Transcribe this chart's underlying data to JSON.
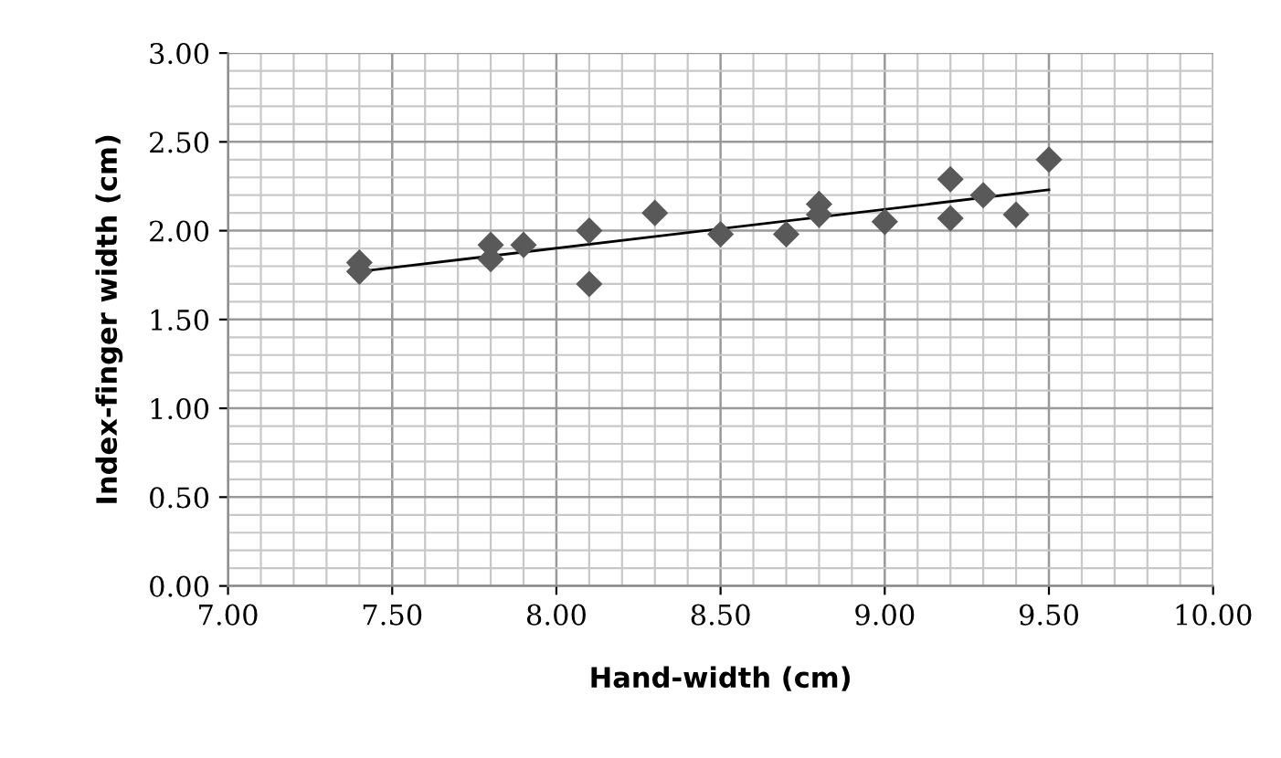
{
  "chart_data": {
    "type": "scatter",
    "xlabel": "Hand-width (cm)",
    "ylabel": "Index-finger width (cm)",
    "xlim": [
      7.0,
      10.0
    ],
    "ylim": [
      0.0,
      3.0
    ],
    "xticks": [
      {
        "value": 7.0,
        "label": "7.00"
      },
      {
        "value": 7.5,
        "label": "7.50"
      },
      {
        "value": 8.0,
        "label": "8.00"
      },
      {
        "value": 8.5,
        "label": "8.50"
      },
      {
        "value": 9.0,
        "label": "9.00"
      },
      {
        "value": 9.5,
        "label": "9.50"
      },
      {
        "value": 10.0,
        "label": "10.00"
      }
    ],
    "yticks": [
      {
        "value": 0.0,
        "label": "0.00"
      },
      {
        "value": 0.5,
        "label": "0.50"
      },
      {
        "value": 1.0,
        "label": "1.00"
      },
      {
        "value": 1.5,
        "label": "1.50"
      },
      {
        "value": 2.0,
        "label": "2.00"
      },
      {
        "value": 2.5,
        "label": "2.50"
      },
      {
        "value": 3.0,
        "label": "3.00"
      }
    ],
    "grid": true,
    "series": [
      {
        "marker": "diamond",
        "color": "#595959",
        "x": [
          7.4,
          7.4,
          7.8,
          7.8,
          7.9,
          8.1,
          8.1,
          8.3,
          8.5,
          8.7,
          8.8,
          8.8,
          9.0,
          9.2,
          9.2,
          9.3,
          9.4,
          9.5
        ],
        "values": [
          1.82,
          1.77,
          1.92,
          1.84,
          1.92,
          2.0,
          1.7,
          2.1,
          1.98,
          1.98,
          2.15,
          2.09,
          2.05,
          2.29,
          2.07,
          2.2,
          2.09,
          2.4
        ]
      },
      {
        "type": "line",
        "color": "#000000",
        "x": [
          7.4,
          9.5
        ],
        "values": [
          1.77,
          2.23
        ]
      }
    ]
  }
}
